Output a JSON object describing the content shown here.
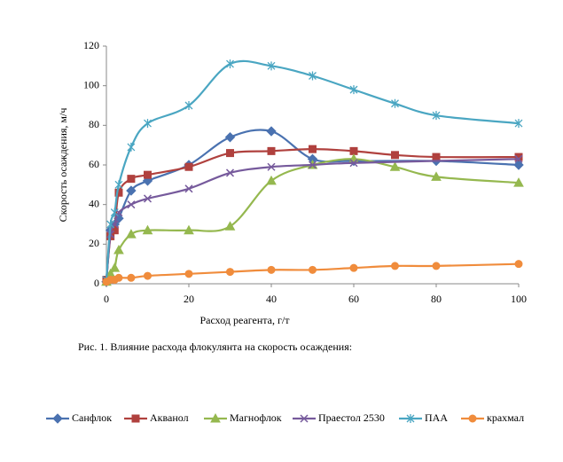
{
  "chart_data": {
    "type": "line",
    "xlabel": "Расход реагента, г/т",
    "ylabel": "Скорость осаждения, м/ч",
    "caption": "Рис. 1. Влияние расхода флокулянта на скорость осаждения:",
    "xlim": [
      0,
      100
    ],
    "xticks": [
      0,
      20,
      40,
      60,
      80,
      100
    ],
    "ylim": [
      0,
      120
    ],
    "yticks": [
      0,
      20,
      40,
      60,
      80,
      100,
      120
    ],
    "legend": "bottom",
    "smooth": true,
    "series": [
      {
        "name": "Санфлок",
        "color": "#4a72b0",
        "marker": "diamond",
        "x": [
          0,
          1,
          2,
          3,
          6,
          10,
          20,
          30,
          40,
          50,
          60,
          80,
          100
        ],
        "values": [
          1,
          27,
          30,
          33,
          47,
          52,
          60,
          74,
          77,
          63,
          62,
          62,
          60
        ]
      },
      {
        "name": "Акванол",
        "color": "#b0413e",
        "marker": "square",
        "x": [
          0,
          1,
          2,
          3,
          6,
          10,
          20,
          30,
          40,
          50,
          60,
          70,
          80,
          100
        ],
        "values": [
          2,
          24,
          27,
          46,
          53,
          55,
          59,
          66,
          67,
          68,
          67,
          65,
          64,
          64
        ]
      },
      {
        "name": "Магнофлок",
        "color": "#95b84f",
        "marker": "triangle",
        "x": [
          0,
          1,
          2,
          3,
          6,
          10,
          20,
          30,
          40,
          50,
          60,
          70,
          80,
          100
        ],
        "values": [
          1,
          5,
          8,
          17,
          25,
          27,
          27,
          29,
          52,
          60,
          63,
          59,
          54,
          51
        ]
      },
      {
        "name": "Праестол 2530",
        "color": "#765a9c",
        "marker": "x",
        "x": [
          0,
          1,
          2,
          3,
          6,
          10,
          20,
          30,
          40,
          50,
          60,
          100
        ],
        "values": [
          2,
          25,
          30,
          36,
          40,
          43,
          48,
          56,
          59,
          60,
          61,
          63
        ]
      },
      {
        "name": "ПАА",
        "color": "#4aa6c2",
        "marker": "star",
        "x": [
          0,
          1,
          2,
          3,
          6,
          10,
          20,
          30,
          40,
          50,
          60,
          70,
          80,
          100
        ],
        "values": [
          2,
          30,
          36,
          50,
          69,
          81,
          90,
          111,
          110,
          105,
          98,
          91,
          85,
          81
        ]
      },
      {
        "name": "крахмал",
        "color": "#f08c3c",
        "marker": "circle",
        "x": [
          0,
          1,
          2,
          3,
          6,
          10,
          20,
          30,
          40,
          50,
          60,
          70,
          80,
          100
        ],
        "values": [
          1,
          2,
          2,
          3,
          3,
          4,
          5,
          6,
          7,
          7,
          8,
          9,
          9,
          10
        ]
      }
    ]
  }
}
